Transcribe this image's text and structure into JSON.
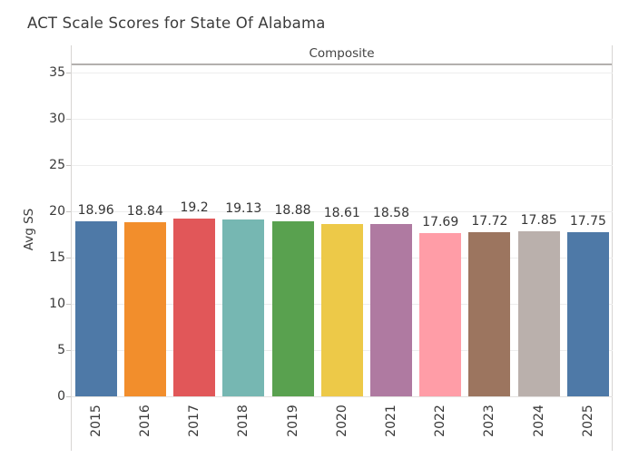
{
  "chart_data": {
    "type": "bar",
    "title": "ACT Scale Scores for State Of Alabama",
    "facet": "Composite",
    "xlabel": "",
    "ylabel": "Avg SS",
    "categories": [
      "2015",
      "2016",
      "2017",
      "2018",
      "2019",
      "2020",
      "2021",
      "2022",
      "2023",
      "2024",
      "2025"
    ],
    "values": [
      18.96,
      18.84,
      19.2,
      19.13,
      18.88,
      18.61,
      18.58,
      17.69,
      17.72,
      17.85,
      17.75
    ],
    "value_labels": [
      "18.96",
      "18.84",
      "19.2",
      "19.13",
      "18.88",
      "18.61",
      "18.58",
      "17.69",
      "17.72",
      "17.85",
      "17.75"
    ],
    "bar_colors": [
      "#4e79a7",
      "#f28e2c",
      "#e15759",
      "#76b7b2",
      "#59a14f",
      "#edc948",
      "#af7aa1",
      "#ff9da7",
      "#9c755f",
      "#bab0ac",
      "#4e79a7"
    ],
    "yticks": [
      0,
      5,
      10,
      15,
      20,
      25,
      30,
      35
    ],
    "ylim": [
      0,
      36.1
    ],
    "grid": true,
    "legend": false,
    "value_labels_shown": true
  }
}
